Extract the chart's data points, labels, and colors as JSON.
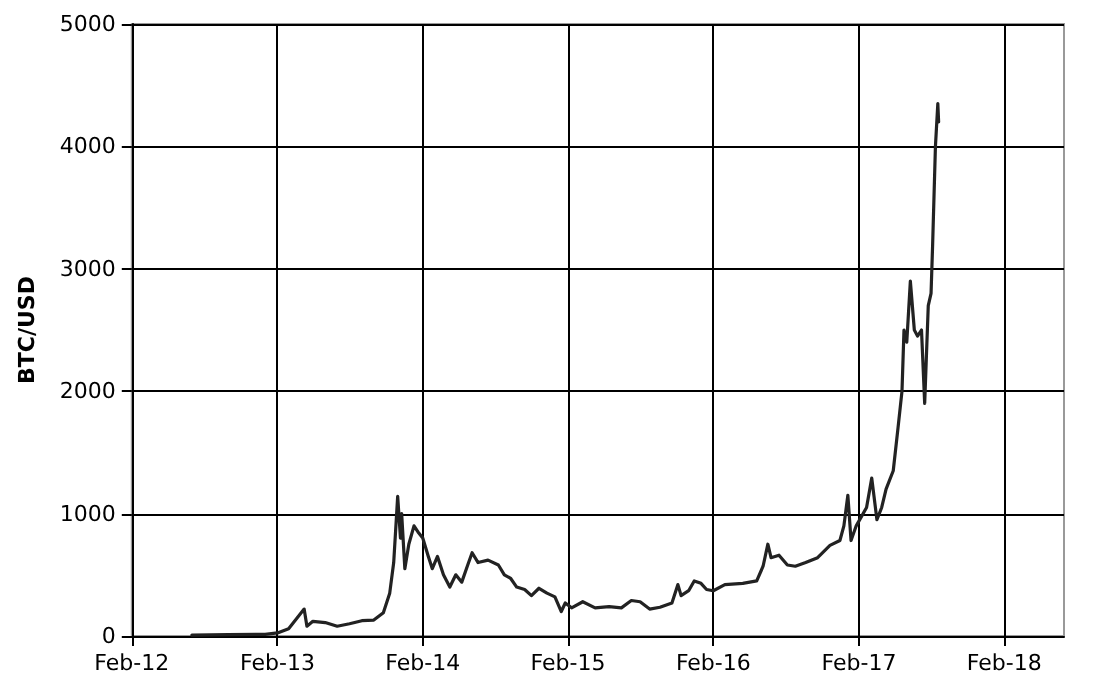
{
  "chart_data": {
    "type": "line",
    "ylabel": "BTC/USD",
    "xlim": [
      "2012-02-01",
      "2018-07-01"
    ],
    "xticks": [
      {
        "value": "2012-02-01",
        "label": "Feb-12"
      },
      {
        "value": "2013-02-01",
        "label": "Feb-13"
      },
      {
        "value": "2014-02-01",
        "label": "Feb-14"
      },
      {
        "value": "2015-02-01",
        "label": "Feb-15"
      },
      {
        "value": "2016-02-01",
        "label": "Feb-16"
      },
      {
        "value": "2017-02-01",
        "label": "Feb-17"
      },
      {
        "value": "2018-02-01",
        "label": "Feb-18"
      }
    ],
    "ylim": [
      0,
      5000
    ],
    "yticks": [
      0,
      1000,
      2000,
      3000,
      4000,
      5000
    ],
    "grid": true,
    "marker": "none",
    "line_style": "solid",
    "series": [
      {
        "color": "#222222",
        "x": [
          "2012-07-01",
          "2012-10-01",
          "2013-01-01",
          "2013-02-01",
          "2013-03-01",
          "2013-04-09",
          "2013-04-16",
          "2013-05-01",
          "2013-06-01",
          "2013-07-01",
          "2013-08-01",
          "2013-09-01",
          "2013-10-01",
          "2013-10-25",
          "2013-11-10",
          "2013-11-20",
          "2013-11-30",
          "2013-12-07",
          "2013-12-10",
          "2013-12-18",
          "2013-12-28",
          "2014-01-10",
          "2014-01-20",
          "2014-02-01",
          "2014-02-15",
          "2014-02-25",
          "2014-03-10",
          "2014-03-25",
          "2014-04-10",
          "2014-04-25",
          "2014-05-10",
          "2014-05-25",
          "2014-06-05",
          "2014-06-20",
          "2014-07-15",
          "2014-08-10",
          "2014-08-25",
          "2014-09-10",
          "2014-09-25",
          "2014-10-15",
          "2014-11-01",
          "2014-11-20",
          "2014-12-10",
          "2014-12-30",
          "2015-01-15",
          "2015-01-25",
          "2015-02-10",
          "2015-03-10",
          "2015-04-10",
          "2015-05-15",
          "2015-06-15",
          "2015-07-10",
          "2015-08-01",
          "2015-08-25",
          "2015-09-20",
          "2015-10-20",
          "2015-11-04",
          "2015-11-12",
          "2015-12-01",
          "2015-12-15",
          "2016-01-01",
          "2016-01-15",
          "2016-02-01",
          "2016-03-01",
          "2016-04-15",
          "2016-05-20",
          "2016-06-05",
          "2016-06-17",
          "2016-06-25",
          "2016-07-15",
          "2016-08-05",
          "2016-08-25",
          "2016-09-20",
          "2016-10-20",
          "2016-11-20",
          "2016-12-15",
          "2016-12-25",
          "2017-01-04",
          "2017-01-12",
          "2017-01-25",
          "2017-02-20",
          "2017-03-05",
          "2017-03-18",
          "2017-03-30",
          "2017-04-10",
          "2017-04-28",
          "2017-05-10",
          "2017-05-20",
          "2017-05-25",
          "2017-06-01",
          "2017-06-10",
          "2017-06-20",
          "2017-06-28",
          "2017-07-08",
          "2017-07-16",
          "2017-07-25",
          "2017-08-01",
          "2017-08-05",
          "2017-08-12",
          "2017-08-18",
          "2017-08-20"
        ],
        "values": [
          7,
          11,
          14,
          25,
          60,
          220,
          80,
          120,
          110,
          80,
          100,
          125,
          130,
          190,
          350,
          600,
          1140,
          800,
          1000,
          550,
          750,
          900,
          850,
          800,
          650,
          550,
          650,
          500,
          400,
          500,
          440,
          580,
          680,
          600,
          620,
          580,
          500,
          470,
          400,
          380,
          330,
          390,
          350,
          320,
          200,
          270,
          230,
          280,
          230,
          240,
          230,
          290,
          280,
          220,
          235,
          270,
          420,
          330,
          370,
          450,
          430,
          380,
          370,
          420,
          430,
          450,
          570,
          750,
          640,
          660,
          580,
          570,
          600,
          640,
          740,
          780,
          900,
          1150,
          780,
          900,
          1050,
          1290,
          950,
          1050,
          1200,
          1350,
          1700,
          2000,
          2500,
          2400,
          2900,
          2500,
          2450,
          2500,
          1900,
          2700,
          2800,
          3200,
          4000,
          4350,
          4200
        ]
      }
    ]
  }
}
